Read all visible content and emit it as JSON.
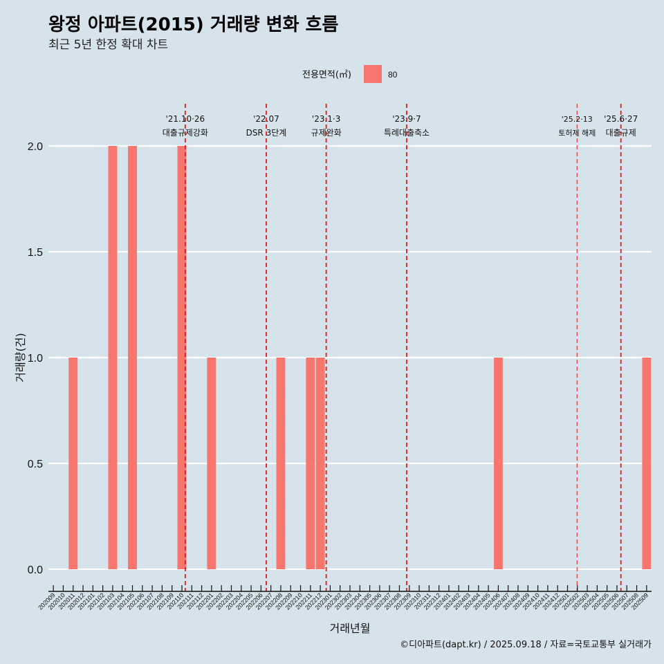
{
  "title": "왕정 아파트(2015) 거래량 변화 흐름",
  "subtitle": "최근 5년 한정 확대 차트",
  "caption": "©디아파트(dapt.kr) / 2025.09.18 / 자료=국토교통부 실거래가",
  "legend": {
    "title": "전용면적(㎡)",
    "label": "80"
  },
  "chart_data": {
    "type": "bar",
    "xlabel": "거래년월",
    "ylabel": "거래량(건)",
    "ylim": [
      0,
      2
    ],
    "yticks": [
      "0.0",
      "0.5",
      "1.0",
      "1.5",
      "2.0"
    ],
    "grid": "horizontal",
    "legend_position": "top",
    "bar_color": "#f8766d",
    "event_color": "#e31a1c",
    "categories": [
      "202009",
      "202010",
      "202011",
      "202012",
      "202101",
      "202102",
      "202103",
      "202104",
      "202105",
      "202106",
      "202107",
      "202108",
      "202109",
      "202110",
      "202111",
      "202112",
      "202201",
      "202202",
      "202203",
      "202204",
      "202205",
      "202206",
      "202207",
      "202208",
      "202209",
      "202210",
      "202211",
      "202212",
      "202301",
      "202302",
      "202303",
      "202304",
      "202305",
      "202306",
      "202307",
      "202308",
      "202309",
      "202310",
      "202311",
      "202312",
      "202401",
      "202402",
      "202403",
      "202404",
      "202405",
      "202406",
      "202407",
      "202408",
      "202409",
      "202410",
      "202411",
      "202412",
      "202501",
      "202502",
      "202503",
      "202504",
      "202505",
      "202506",
      "202507",
      "202508",
      "202509"
    ],
    "series": [
      {
        "name": "80",
        "values": [
          0,
          0,
          1,
          0,
          0,
          0,
          2,
          0,
          2,
          0,
          0,
          0,
          0,
          2,
          0,
          0,
          1,
          0,
          0,
          0,
          0,
          0,
          0,
          1,
          0,
          0,
          1,
          1,
          0,
          0,
          0,
          0,
          0,
          0,
          0,
          0,
          0,
          0,
          0,
          0,
          0,
          0,
          0,
          0,
          0,
          1,
          0,
          0,
          0,
          0,
          0,
          0,
          0,
          0,
          0,
          0,
          0,
          0,
          0,
          0,
          1
        ]
      }
    ],
    "events": [
      {
        "date": "2021-10-26",
        "line1": "'21.10·26",
        "line2": "대출규제강화",
        "style": "bold"
      },
      {
        "date": "2022-07-01",
        "line1": "'22.07",
        "line2": "DSR 3단계",
        "style": "bold"
      },
      {
        "date": "2023-01-03",
        "line1": "'23.1·3",
        "line2": "규제완화",
        "style": "bold"
      },
      {
        "date": "2023-09-07",
        "line1": "'23.9·7",
        "line2": "특례대출축소",
        "style": "bold"
      },
      {
        "date": "2025-02-13",
        "line1": "'25.2·13",
        "line2": "토허제 해제",
        "style": "thin"
      },
      {
        "date": "2025-06-27",
        "line1": "'25.6·27",
        "line2": "대출규제",
        "style": "bold"
      }
    ]
  }
}
